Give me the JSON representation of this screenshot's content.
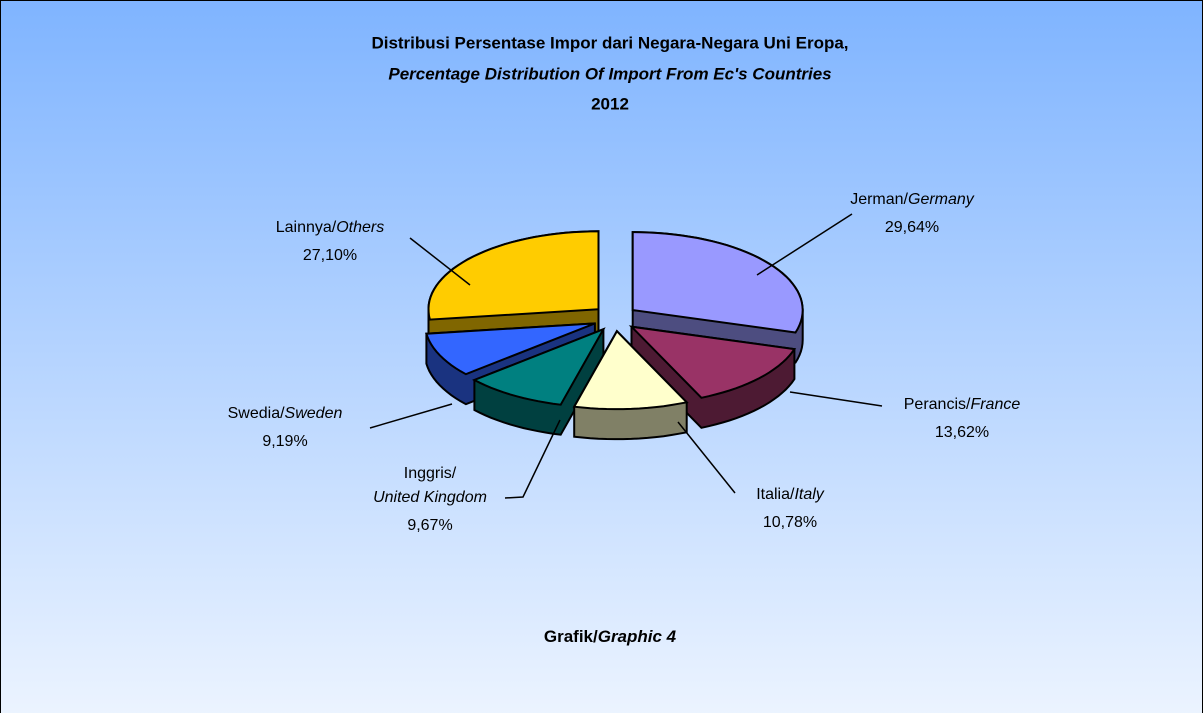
{
  "chart_data": {
    "type": "pie",
    "title": "Distribusi Persentase Impor dari Negara-Negara Uni Eropa,",
    "subtitle": "Percentage Distribution Of Import From Ec's Countries",
    "year": "2012",
    "caption": "Grafik/Graphic 4",
    "categories": [
      "Jerman/Germany",
      "Perancis/France",
      "Italia/Italy",
      "Inggris/United Kingdom",
      "Swedia/Sweden",
      "Lainnya/Others"
    ],
    "values": [
      29.64,
      13.62,
      10.78,
      9.67,
      9.19,
      27.1
    ],
    "value_labels": [
      "29,64%",
      "13,62%",
      "10,78%",
      "9,67%",
      "9,19%",
      "27,10%"
    ],
    "colors": [
      "#9999ff",
      "#993366",
      "#ffffcc",
      "#008080",
      "#3366ff",
      "#ffcc00"
    ]
  }
}
